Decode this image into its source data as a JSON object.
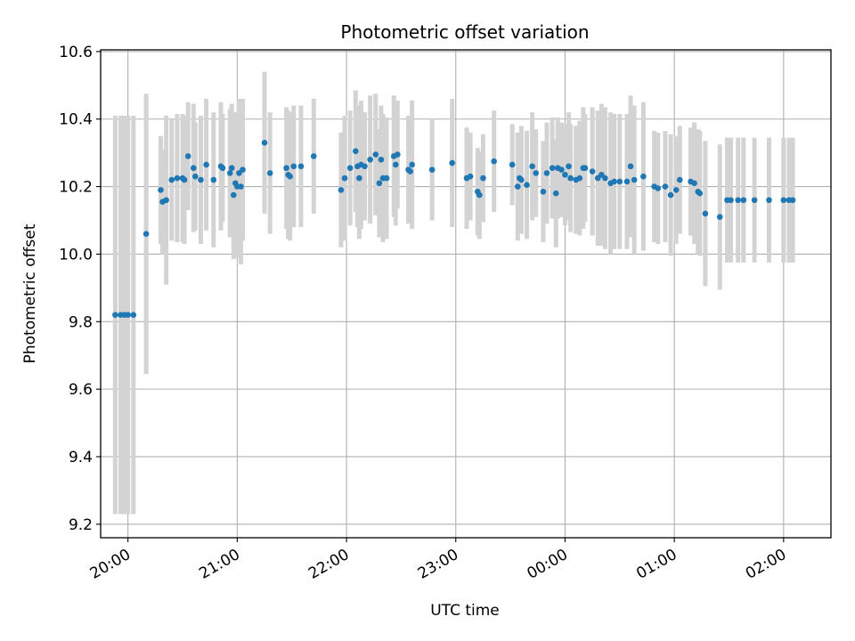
{
  "chart_data": {
    "type": "scatter",
    "title": "Photometric offset variation",
    "xlabel": "UTC time",
    "ylabel": "Photometric offset",
    "xlim": [
      "19:45",
      "02:26"
    ],
    "ylim": [
      9.16,
      10.605
    ],
    "x_ticks": [
      "20:00",
      "21:00",
      "22:00",
      "23:00",
      "00:00",
      "01:00",
      "02:00"
    ],
    "y_ticks": [
      "9.2",
      "9.4",
      "9.6",
      "9.8",
      "10.0",
      "10.2",
      "10.4",
      "10.6"
    ],
    "grid": true,
    "colors": {
      "point": "#1f77b4",
      "errorbar": "#d3d3d3",
      "grid": "#b0b0b0"
    },
    "series": [
      {
        "x": [
          "19:53",
          "19:56",
          "19:58",
          "20:00",
          "20:03",
          "20:10",
          "20:18",
          "20:19",
          "20:21",
          "20:24",
          "20:27",
          "20:30",
          "20:31",
          "20:33",
          "20:36",
          "20:37",
          "20:40",
          "20:43",
          "20:47",
          "20:51",
          "20:52",
          "20:56",
          "20:57",
          "20:58",
          "20:59",
          "21:00",
          "21:01",
          "21:02",
          "21:03",
          "21:15",
          "21:18",
          "21:27",
          "21:28",
          "21:29",
          "21:31",
          "21:35",
          "21:42",
          "21:57",
          "21:59",
          "22:02",
          "22:05",
          "22:06",
          "22:07",
          "22:08",
          "22:10",
          "22:13",
          "22:16",
          "22:18",
          "22:19",
          "22:20",
          "22:22",
          "22:26",
          "22:27",
          "22:28",
          "22:34",
          "22:35",
          "22:36",
          "22:47",
          "22:58",
          "23:06",
          "23:08",
          "23:12",
          "23:13",
          "23:15",
          "23:21",
          "23:31",
          "23:34",
          "23:35",
          "23:36",
          "23:39",
          "23:42",
          "23:44",
          "23:48",
          "23:50",
          "23:53",
          "23:55",
          "23:56",
          "23:58",
          "00:00",
          "00:02",
          "00:03",
          "00:06",
          "00:08",
          "00:10",
          "00:11",
          "00:15",
          "00:18",
          "00:20",
          "00:22",
          "00:25",
          "00:27",
          "00:30",
          "00:34",
          "00:36",
          "00:38",
          "00:43",
          "00:49",
          "00:51",
          "00:55",
          "00:58",
          "01:01",
          "01:03",
          "01:09",
          "01:11",
          "01:13",
          "01:14",
          "01:17",
          "01:25",
          "01:29",
          "01:31",
          "01:35",
          "01:38",
          "01:44",
          "01:52",
          "02:00",
          "02:03",
          "02:05"
        ],
        "y": [
          9.82,
          9.82,
          9.82,
          9.82,
          9.82,
          10.06,
          10.19,
          10.155,
          10.16,
          10.22,
          10.225,
          10.225,
          10.22,
          10.29,
          10.255,
          10.23,
          10.22,
          10.265,
          10.22,
          10.26,
          10.255,
          10.24,
          10.255,
          10.175,
          10.21,
          10.2,
          10.24,
          10.2,
          10.25,
          10.33,
          10.24,
          10.255,
          10.235,
          10.23,
          10.26,
          10.26,
          10.29,
          10.19,
          10.225,
          10.255,
          10.305,
          10.26,
          10.225,
          10.265,
          10.26,
          10.28,
          10.295,
          10.21,
          10.28,
          10.225,
          10.225,
          10.29,
          10.265,
          10.295,
          10.25,
          10.245,
          10.265,
          10.25,
          10.27,
          10.225,
          10.23,
          10.185,
          10.175,
          10.225,
          10.275,
          10.265,
          10.2,
          10.225,
          10.22,
          10.205,
          10.26,
          10.24,
          10.185,
          10.24,
          10.255,
          10.18,
          10.255,
          10.25,
          10.235,
          10.26,
          10.225,
          10.22,
          10.225,
          10.255,
          10.255,
          10.245,
          10.225,
          10.235,
          10.225,
          10.21,
          10.215,
          10.215,
          10.215,
          10.26,
          10.22,
          10.23,
          10.2,
          10.195,
          10.2,
          10.175,
          10.19,
          10.22,
          10.215,
          10.21,
          10.185,
          10.18,
          10.12,
          10.11,
          10.16,
          10.16,
          10.16,
          10.16,
          10.16,
          10.16,
          10.16,
          10.16,
          10.16
        ],
        "yerr": [
          0.59,
          0.59,
          0.59,
          0.59,
          0.59,
          0.415,
          0.16,
          0.155,
          0.25,
          0.18,
          0.19,
          0.19,
          0.19,
          0.16,
          0.19,
          0.16,
          0.19,
          0.195,
          0.2,
          0.19,
          0.16,
          0.19,
          0.19,
          0.19,
          0.21,
          0.21,
          0.22,
          0.23,
          0.21,
          0.21,
          0.18,
          0.18,
          0.19,
          0.19,
          0.18,
          0.18,
          0.17,
          0.17,
          0.185,
          0.17,
          0.18,
          0.18,
          0.18,
          0.19,
          0.16,
          0.19,
          0.18,
          0.16,
          0.16,
          0.19,
          0.18,
          0.18,
          0.18,
          0.16,
          0.16,
          0.15,
          0.19,
          0.15,
          0.19,
          0.15,
          0.13,
          0.13,
          0.13,
          0.13,
          0.15,
          0.12,
          0.16,
          0.13,
          0.16,
          0.16,
          0.16,
          0.13,
          0.15,
          0.15,
          0.15,
          0.16,
          0.15,
          0.14,
          0.15,
          0.16,
          0.16,
          0.16,
          0.17,
          0.18,
          0.16,
          0.19,
          0.2,
          0.21,
          0.21,
          0.21,
          0.2,
          0.2,
          0.2,
          0.21,
          0.22,
          0.22,
          0.165,
          0.165,
          0.165,
          0.18,
          0.16,
          0.16,
          0.16,
          0.18,
          0.185,
          0.185,
          0.215,
          0.215,
          0.185,
          0.185,
          0.185,
          0.185,
          0.185,
          0.185,
          0.185,
          0.185,
          0.185
        ]
      }
    ]
  }
}
